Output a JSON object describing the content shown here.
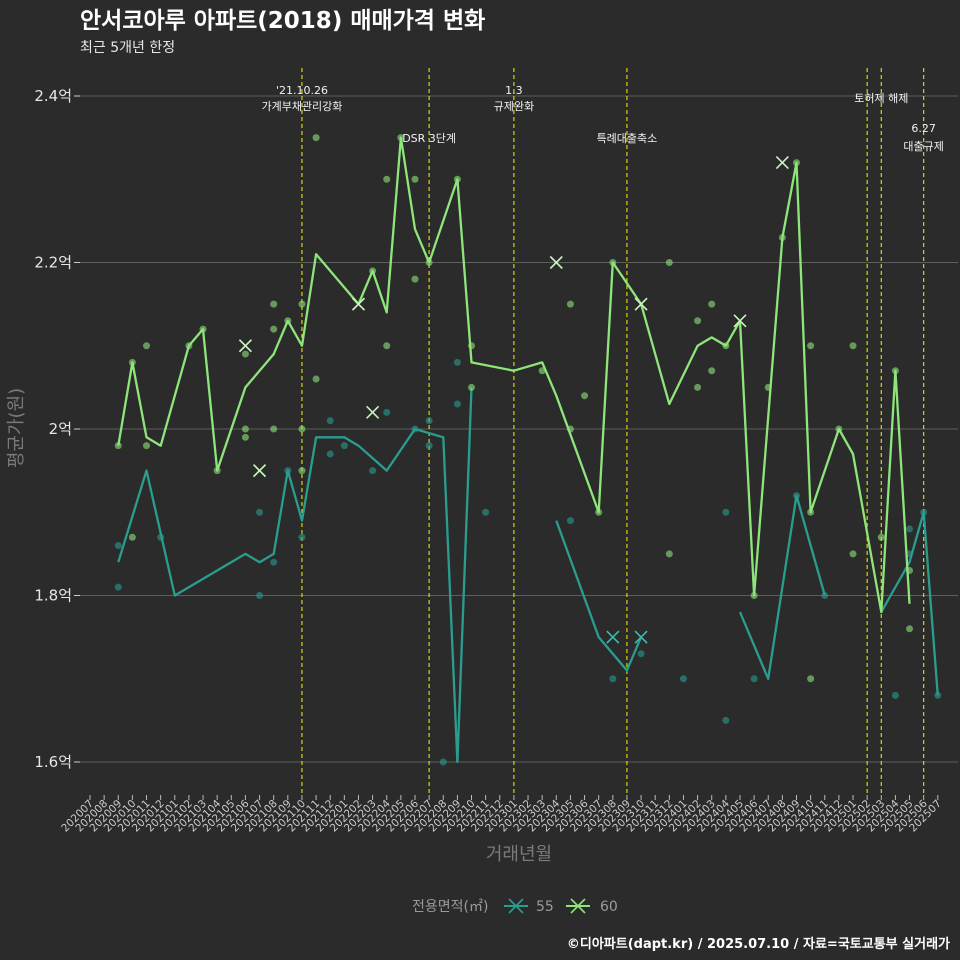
{
  "header": {
    "title": "안서코아루 아파트(2018) 매매가격 변화",
    "subtitle": "최근 5개년 한정"
  },
  "caption": "©디아파트(dapt.kr) / 2025.07.10 / 자료=국토교통부 실거래가",
  "legend": {
    "title": "전용면적(㎡)",
    "items": [
      "55",
      "60"
    ]
  },
  "colors": {
    "s55": "#2a9d8f",
    "s60": "#8ee57a",
    "vline": "#e6e600",
    "background": "#2b2b2b"
  },
  "chart_data": {
    "type": "line",
    "xlabel": "거래년월",
    "ylabel": "평균가(원)",
    "ylim": [
      1.56,
      2.44
    ],
    "yticks": [
      1.6,
      1.8,
      2.0,
      2.2,
      2.4
    ],
    "ytick_labels": [
      "1.6억",
      "1.8억",
      "2억",
      "2.2억",
      "2.4억"
    ],
    "grid": true,
    "legend_position": "bottom",
    "x": [
      "202007",
      "202008",
      "202009",
      "202010",
      "202011",
      "202012",
      "202101",
      "202102",
      "202103",
      "202104",
      "202105",
      "202106",
      "202107",
      "202108",
      "202109",
      "202110",
      "202111",
      "202112",
      "202201",
      "202202",
      "202203",
      "202204",
      "202205",
      "202206",
      "202207",
      "202208",
      "202209",
      "202210",
      "202211",
      "202212",
      "202301",
      "202302",
      "202303",
      "202304",
      "202305",
      "202306",
      "202307",
      "202308",
      "202309",
      "202310",
      "202311",
      "202312",
      "202401",
      "202402",
      "202403",
      "202404",
      "202405",
      "202406",
      "202407",
      "202408",
      "202409",
      "202410",
      "202411",
      "202412",
      "202501",
      "202502",
      "202503",
      "202504",
      "202505",
      "202506",
      "202507"
    ],
    "annotations": [
      {
        "x": "202110",
        "lines": [
          "'21.10.26",
          "가계부채관리강화"
        ],
        "row": 1
      },
      {
        "x": "202207",
        "lines": [
          "DSR 3단계"
        ],
        "row": 2
      },
      {
        "x": "202301",
        "lines": [
          "1.3",
          "규제완화"
        ],
        "row": 1
      },
      {
        "x": "202309",
        "lines": [
          "특례대출축소"
        ],
        "row": 2
      },
      {
        "x": "202502",
        "lines": [],
        "row": 1
      },
      {
        "x": "202503",
        "lines": [
          "토허제 해제"
        ],
        "row": 1
      },
      {
        "x": "202506",
        "lines": [
          "6.27",
          "대출규제"
        ],
        "row": 3
      }
    ],
    "series": [
      {
        "name": "55",
        "color": "#2a9d8f",
        "line": [
          [
            [
              "202009",
              1.84
            ],
            [
              "202011",
              1.95
            ],
            [
              "202101",
              1.8
            ],
            [
              "202106",
              1.85
            ],
            [
              "202107",
              1.84
            ],
            [
              "202108",
              1.85
            ],
            [
              "202109",
              1.95
            ],
            [
              "202110",
              1.89
            ],
            [
              "202111",
              1.99
            ],
            [
              "202201",
              1.99
            ],
            [
              "202202",
              1.98
            ],
            [
              "202204",
              1.95
            ],
            [
              "202206",
              2.0
            ],
            [
              "202208",
              1.99
            ],
            [
              "202209",
              1.6
            ],
            [
              "202210",
              2.05
            ]
          ],
          [
            [
              "202304",
              1.89
            ],
            [
              "202307",
              1.75
            ],
            [
              "202309",
              1.71
            ],
            [
              "202310",
              1.75
            ]
          ],
          [
            [
              "202405",
              1.78
            ],
            [
              "202407",
              1.7
            ],
            [
              "202409",
              1.92
            ],
            [
              "202411",
              1.8
            ]
          ],
          [
            [
              "202503",
              1.78
            ],
            [
              "202505",
              1.84
            ],
            [
              "202506",
              1.9
            ],
            [
              "202507",
              1.68
            ]
          ]
        ],
        "points": [
          [
            "202009",
            1.81
          ],
          [
            "202009",
            1.86
          ],
          [
            "202012",
            1.87
          ],
          [
            "202107",
            1.8
          ],
          [
            "202107",
            1.9
          ],
          [
            "202108",
            1.84
          ],
          [
            "202109",
            1.95
          ],
          [
            "202110",
            1.87
          ],
          [
            "202112",
            1.97
          ],
          [
            "202112",
            2.01
          ],
          [
            "202201",
            1.98
          ],
          [
            "202203",
            1.95
          ],
          [
            "202204",
            2.02
          ],
          [
            "202206",
            2.0
          ],
          [
            "202207",
            1.98
          ],
          [
            "202207",
            2.01
          ],
          [
            "202208",
            1.6
          ],
          [
            "202209",
            2.03
          ],
          [
            "202209",
            2.08
          ],
          [
            "202211",
            1.9
          ],
          [
            "202305",
            1.89
          ],
          [
            "202308",
            1.7
          ],
          [
            "202310",
            1.73
          ],
          [
            "202401",
            1.7
          ],
          [
            "202404",
            1.9
          ],
          [
            "202404",
            1.65
          ],
          [
            "202406",
            1.7
          ],
          [
            "202409",
            1.92
          ],
          [
            "202411",
            1.8
          ],
          [
            "202504",
            1.68
          ],
          [
            "202505",
            1.88
          ],
          [
            "202505",
            1.85
          ],
          [
            "202506",
            1.9
          ],
          [
            "202507",
            1.68
          ]
        ],
        "crosses": [
          [
            "202308",
            1.75
          ],
          [
            "202310",
            1.75
          ]
        ]
      },
      {
        "name": "60",
        "color": "#8ee57a",
        "line": [
          [
            [
              "202009",
              1.98
            ],
            [
              "202010",
              2.08
            ],
            [
              "202011",
              1.99
            ],
            [
              "202012",
              1.98
            ],
            [
              "202102",
              2.1
            ],
            [
              "202103",
              2.12
            ],
            [
              "202104",
              1.95
            ],
            [
              "202106",
              2.05
            ],
            [
              "202108",
              2.09
            ],
            [
              "202109",
              2.13
            ],
            [
              "202110",
              2.1
            ],
            [
              "202111",
              2.21
            ],
            [
              "202202",
              2.15
            ],
            [
              "202203",
              2.19
            ],
            [
              "202204",
              2.14
            ],
            [
              "202205",
              2.35
            ],
            [
              "202206",
              2.24
            ],
            [
              "202207",
              2.2
            ],
            [
              "202209",
              2.3
            ],
            [
              "202210",
              2.08
            ],
            [
              "202301",
              2.07
            ],
            [
              "202303",
              2.08
            ],
            [
              "202304",
              2.04
            ],
            [
              "202307",
              1.9
            ],
            [
              "202308",
              2.2
            ],
            [
              "202310",
              2.15
            ],
            [
              "202312",
              2.03
            ],
            [
              "202402",
              2.1
            ],
            [
              "202403",
              2.11
            ],
            [
              "202404",
              2.1
            ],
            [
              "202405",
              2.13
            ],
            [
              "202406",
              1.8
            ],
            [
              "202408",
              2.23
            ],
            [
              "202409",
              2.32
            ],
            [
              "202410",
              1.9
            ],
            [
              "202412",
              2.0
            ],
            [
              "202501",
              1.97
            ],
            [
              "202503",
              1.78
            ],
            [
              "202504",
              2.07
            ],
            [
              "202505",
              1.79
            ]
          ]
        ],
        "points": [
          [
            "202009",
            1.98
          ],
          [
            "202010",
            2.08
          ],
          [
            "202010",
            1.87
          ],
          [
            "202011",
            2.1
          ],
          [
            "202011",
            1.98
          ],
          [
            "202102",
            2.1
          ],
          [
            "202103",
            2.12
          ],
          [
            "202104",
            1.95
          ],
          [
            "202106",
            2.09
          ],
          [
            "202106",
            2.0
          ],
          [
            "202106",
            1.99
          ],
          [
            "202108",
            2.12
          ],
          [
            "202108",
            2.15
          ],
          [
            "202108",
            2.0
          ],
          [
            "202109",
            2.13
          ],
          [
            "202110",
            2.15
          ],
          [
            "202110",
            2.0
          ],
          [
            "202110",
            1.95
          ],
          [
            "202111",
            2.35
          ],
          [
            "202111",
            2.06
          ],
          [
            "202203",
            2.19
          ],
          [
            "202204",
            2.3
          ],
          [
            "202204",
            2.1
          ],
          [
            "202205",
            2.35
          ],
          [
            "202206",
            2.3
          ],
          [
            "202206",
            2.18
          ],
          [
            "202207",
            2.2
          ],
          [
            "202209",
            2.3
          ],
          [
            "202210",
            2.1
          ],
          [
            "202210",
            2.05
          ],
          [
            "202303",
            2.07
          ],
          [
            "202305",
            2.15
          ],
          [
            "202305",
            2.0
          ],
          [
            "202306",
            2.04
          ],
          [
            "202307",
            1.9
          ],
          [
            "202308",
            2.2
          ],
          [
            "202312",
            2.2
          ],
          [
            "202312",
            1.85
          ],
          [
            "202402",
            2.13
          ],
          [
            "202402",
            2.05
          ],
          [
            "202403",
            2.15
          ],
          [
            "202403",
            2.07
          ],
          [
            "202404",
            2.1
          ],
          [
            "202406",
            1.8
          ],
          [
            "202407",
            2.05
          ],
          [
            "202408",
            2.23
          ],
          [
            "202409",
            2.32
          ],
          [
            "202410",
            2.1
          ],
          [
            "202410",
            1.9
          ],
          [
            "202410",
            1.7
          ],
          [
            "202412",
            2.0
          ],
          [
            "202501",
            2.1
          ],
          [
            "202501",
            1.85
          ],
          [
            "202503",
            1.87
          ],
          [
            "202504",
            2.07
          ],
          [
            "202505",
            1.83
          ],
          [
            "202505",
            1.76
          ]
        ],
        "crosses": [
          [
            "202106",
            2.1
          ],
          [
            "202107",
            1.95
          ],
          [
            "202202",
            2.15
          ],
          [
            "202203",
            2.02
          ],
          [
            "202304",
            2.2
          ],
          [
            "202310",
            2.15
          ],
          [
            "202405",
            2.13
          ],
          [
            "202408",
            2.32
          ]
        ]
      }
    ]
  }
}
